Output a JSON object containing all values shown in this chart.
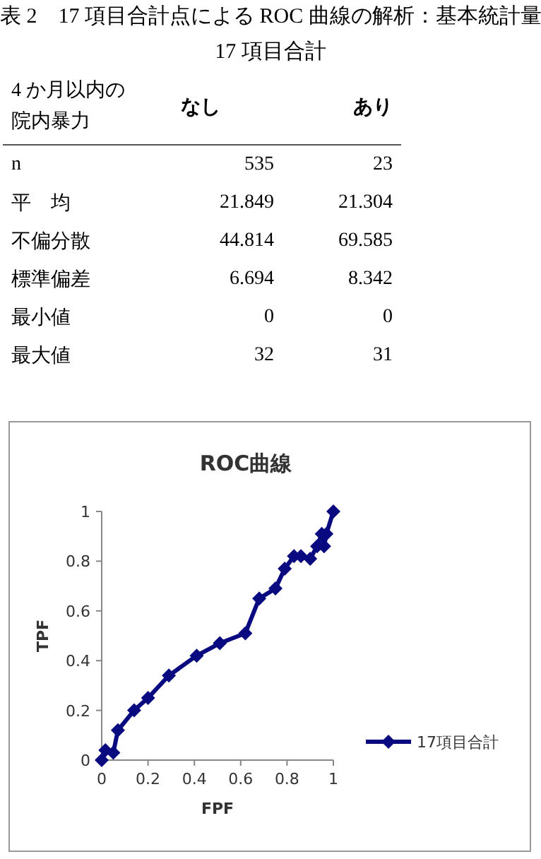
{
  "chart_data": [
    {
      "type": "other",
      "title": "表 2　17 項目合計点による ROC 曲線の解析：基本統計量",
      "subtitle": "17 項目合計",
      "annotations": [
        "4 か月以内の院内暴力",
        "なし",
        "あり",
        "n",
        "535",
        "23",
        "平　均",
        "21.849",
        "21.304",
        "不偏分散",
        "44.814",
        "69.585",
        "標準偏差",
        "6.694",
        "8.342",
        "最小値",
        "0",
        "0",
        "最大値",
        "32",
        "31"
      ]
    },
    {
      "type": "line",
      "title": "ROC曲線",
      "xlabel": "FPF",
      "ylabel": "TPF",
      "xlim": [
        0,
        1
      ],
      "ylim": [
        0,
        1
      ],
      "xticks": [
        0,
        0.2,
        0.4,
        0.6,
        0.8,
        1
      ],
      "yticks": [
        0,
        0.2,
        0.4,
        0.6,
        0.8,
        1
      ],
      "marker": "diamond",
      "line_style": "solid",
      "legend": "right",
      "series": [
        {
          "name": "17項目合計",
          "color": "#0a0a80",
          "x": [
            0,
            0.016,
            0.05,
            0.07,
            0.14,
            0.2,
            0.29,
            0.41,
            0.51,
            0.62,
            0.68,
            0.75,
            0.79,
            0.83,
            0.86,
            0.9,
            0.93,
            0.95,
            0.96,
            0.97,
            1
          ],
          "values": [
            0,
            0.04,
            0.03,
            0.12,
            0.2,
            0.25,
            0.34,
            0.42,
            0.47,
            0.51,
            0.65,
            0.69,
            0.77,
            0.82,
            0.82,
            0.81,
            0.86,
            0.91,
            0.86,
            0.91,
            1
          ]
        }
      ]
    }
  ]
}
